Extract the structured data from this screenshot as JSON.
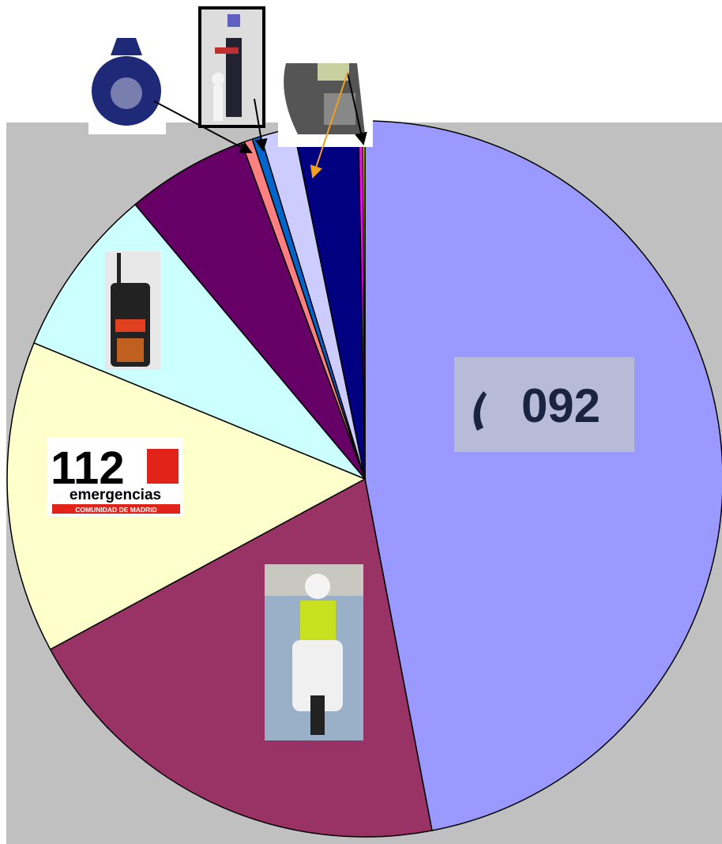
{
  "chart_data": {
    "type": "pie",
    "values": [
      47.0,
      20.1,
      14.1,
      7.7,
      5.5,
      0.5,
      0.4,
      1.5,
      2.9,
      0.2,
      0.1
    ],
    "colors": [
      "#9999ff",
      "#993366",
      "#ffffcc",
      "#ccffff",
      "#660066",
      "#ff8080",
      "#0066cc",
      "#ccccff",
      "#000080",
      "#ff00ff",
      "#ffff00"
    ],
    "start_angle": 0,
    "direction": "clockwise",
    "image_texts": {
      "phone_number": "092",
      "emergency_number": "112",
      "emergency_word": "emergencias",
      "emergency_region": "COMUNIDAD DE MADRID"
    }
  }
}
